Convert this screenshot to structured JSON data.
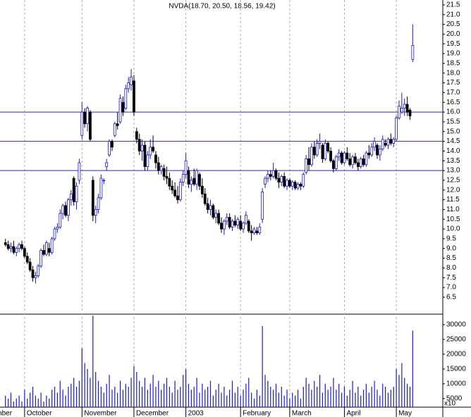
{
  "chart_data": {
    "type": "candlestick",
    "title": "NVDA(18.70, 20.50, 18.56, 19.42)",
    "up_color": "#1a1acc",
    "down_color": "#000000",
    "volume_color": "#1a1acc",
    "level_color": "#2a2aa8",
    "levels": [
      16.0,
      14.5,
      13.0
    ],
    "xlim": [
      -2,
      160
    ],
    "xticks": [
      {
        "value": -11,
        "label": "September"
      },
      {
        "value": 7,
        "label": "October"
      },
      {
        "value": 28,
        "label": "November"
      },
      {
        "value": 47,
        "label": "December"
      },
      {
        "value": 66,
        "label": "2003"
      },
      {
        "value": 86,
        "label": "February"
      },
      {
        "value": 104,
        "label": "March"
      },
      {
        "value": 124,
        "label": "April"
      },
      {
        "value": 143,
        "label": "May"
      }
    ],
    "ylim": [
      5.63,
      21.75
    ],
    "yticks": [
      6.5,
      {
        "value": 7,
        "label": "7.0"
      },
      7.5,
      {
        "value": 8,
        "label": "8.0"
      },
      8.5,
      {
        "value": 9,
        "label": "9.0"
      },
      9.5,
      {
        "value": 10,
        "label": "10.0"
      },
      10.5,
      {
        "value": 11,
        "label": "11.0"
      },
      11.5,
      {
        "value": 12,
        "label": "12.0"
      },
      12.5,
      {
        "value": 13,
        "label": "13.0"
      },
      13.5,
      {
        "value": 14,
        "label": "14.0"
      },
      14.5,
      {
        "value": 15,
        "label": "15.0"
      },
      15.5,
      {
        "value": 16,
        "label": "16.0"
      },
      16.5,
      {
        "value": 17,
        "label": "17.0"
      },
      17.5,
      {
        "value": 18,
        "label": "18.0"
      },
      18.5,
      {
        "value": 19,
        "label": "19.0"
      },
      19.5,
      {
        "value": 20,
        "label": "20.0"
      },
      20.5,
      {
        "value": 21,
        "label": "21.0"
      },
      21.5
    ],
    "volume_unit": "x10",
    "y2lim": [
      2100,
      32100
    ],
    "y2ticks": [
      5000,
      10000,
      15000,
      20000,
      25000,
      30000
    ],
    "ohlc": [
      [
        9.3,
        9.5,
        9.1,
        9.2
      ],
      [
        9.2,
        9.4,
        8.9,
        9.0
      ],
      [
        9.0,
        9.3,
        8.8,
        9.1
      ],
      [
        9.1,
        9.4,
        8.7,
        8.8
      ],
      [
        8.8,
        9.1,
        8.6,
        9.0
      ],
      [
        9.0,
        9.3,
        8.8,
        9.2
      ],
      [
        9.2,
        9.4,
        8.9,
        9.0
      ],
      [
        9.0,
        9.1,
        8.5,
        8.6
      ],
      [
        8.6,
        8.8,
        8.2,
        8.3
      ],
      [
        8.3,
        8.5,
        7.8,
        7.9
      ],
      [
        7.9,
        8.1,
        7.3,
        7.5
      ],
      [
        7.5,
        7.8,
        7.2,
        7.6
      ],
      [
        7.6,
        8.2,
        7.5,
        8.1
      ],
      [
        8.1,
        9.0,
        8.0,
        8.9
      ],
      [
        8.9,
        9.2,
        8.6,
        8.7
      ],
      [
        8.7,
        9.4,
        8.6,
        9.3
      ],
      [
        9.0,
        9.3,
        8.6,
        8.8
      ],
      [
        8.8,
        9.6,
        8.7,
        9.5
      ],
      [
        9.5,
        10.1,
        9.4,
        10.0
      ],
      [
        10.0,
        10.3,
        9.8,
        10.1
      ],
      [
        10.1,
        11.0,
        10.0,
        10.8
      ],
      [
        10.8,
        11.3,
        10.5,
        11.2
      ],
      [
        11.2,
        11.4,
        10.6,
        10.7
      ],
      [
        10.7,
        11.6,
        10.4,
        11.5
      ],
      [
        11.5,
        12.0,
        11.2,
        11.8
      ],
      [
        12.6,
        12.7,
        11.2,
        11.4
      ],
      [
        11.4,
        12.4,
        11.0,
        12.2
      ],
      [
        12.5,
        13.6,
        12.3,
        13.4
      ],
      [
        14.8,
        16.5,
        14.6,
        16.0
      ],
      [
        16.0,
        16.2,
        15.2,
        15.4
      ],
      [
        15.4,
        16.3,
        15.0,
        16.2
      ],
      [
        16.0,
        16.1,
        14.5,
        14.6
      ],
      [
        12.5,
        12.7,
        10.4,
        10.7
      ],
      [
        10.7,
        11.2,
        10.3,
        11.0
      ],
      [
        11.0,
        11.8,
        10.8,
        11.6
      ],
      [
        11.6,
        12.8,
        11.5,
        12.6
      ],
      [
        12.5,
        12.6,
        12.3,
        12.5
      ],
      [
        13.2,
        13.6,
        13.0,
        13.4
      ],
      [
        13.8,
        14.6,
        13.7,
        14.5
      ],
      [
        14.5,
        14.6,
        14.0,
        14.2
      ],
      [
        14.8,
        15.5,
        14.7,
        15.4
      ],
      [
        15.4,
        16.0,
        15.1,
        15.3
      ],
      [
        15.5,
        16.9,
        15.4,
        16.7
      ],
      [
        16.5,
        16.8,
        15.8,
        16.0
      ],
      [
        16.2,
        17.4,
        16.1,
        17.2
      ],
      [
        17.2,
        17.8,
        17.0,
        17.5
      ],
      [
        17.4,
        18.2,
        17.1,
        17.8
      ],
      [
        17.6,
        17.9,
        15.8,
        16.0
      ],
      [
        15.0,
        15.2,
        14.4,
        14.6
      ],
      [
        14.6,
        14.9,
        13.8,
        14.0
      ],
      [
        14.0,
        14.6,
        13.5,
        14.3
      ],
      [
        14.3,
        14.5,
        13.0,
        13.2
      ],
      [
        13.2,
        14.0,
        13.0,
        13.8
      ],
      [
        13.8,
        14.6,
        13.6,
        14.2
      ],
      [
        14.2,
        14.8,
        13.9,
        14.0
      ],
      [
        13.8,
        14.0,
        13.1,
        13.4
      ],
      [
        13.4,
        13.7,
        12.8,
        13.0
      ],
      [
        13.0,
        13.3,
        12.8,
        13.2
      ],
      [
        13.1,
        13.3,
        12.5,
        12.7
      ],
      [
        12.7,
        13.2,
        12.3,
        12.6
      ],
      [
        12.6,
        12.9,
        12.0,
        12.2
      ],
      [
        12.2,
        12.5,
        11.8,
        12.0
      ],
      [
        12.0,
        12.4,
        11.6,
        11.7
      ],
      [
        11.7,
        12.2,
        11.3,
        11.5
      ],
      [
        11.5,
        12.6,
        11.4,
        12.4
      ],
      [
        12.4,
        13.0,
        12.2,
        12.8
      ],
      [
        12.8,
        13.9,
        12.6,
        13.5
      ],
      [
        13.0,
        13.2,
        12.1,
        12.3
      ],
      [
        12.3,
        12.7,
        11.9,
        12.5
      ],
      [
        12.6,
        13.1,
        12.2,
        12.3
      ],
      [
        12.3,
        13.1,
        12.0,
        13.0
      ],
      [
        12.8,
        12.9,
        12.0,
        12.2
      ],
      [
        12.2,
        12.6,
        11.6,
        11.8
      ],
      [
        11.8,
        12.1,
        11.2,
        11.3
      ],
      [
        11.3,
        11.6,
        10.8,
        11.0
      ],
      [
        11.0,
        11.5,
        10.7,
        11.2
      ],
      [
        11.2,
        11.3,
        10.5,
        10.6
      ],
      [
        10.6,
        11.0,
        10.3,
        10.8
      ],
      [
        10.8,
        11.0,
        10.2,
        10.3
      ],
      [
        10.3,
        10.6,
        9.8,
        10.0
      ],
      [
        10.0,
        10.5,
        9.7,
        10.4
      ],
      [
        10.4,
        10.8,
        10.2,
        10.6
      ],
      [
        10.6,
        10.8,
        10.0,
        10.1
      ],
      [
        10.1,
        10.5,
        9.9,
        10.4
      ],
      [
        10.4,
        10.7,
        10.1,
        10.2
      ],
      [
        10.2,
        10.6,
        10.0,
        10.5
      ],
      [
        10.4,
        10.7,
        9.9,
        10.0
      ],
      [
        10.0,
        10.4,
        9.8,
        10.3
      ],
      [
        10.3,
        10.9,
        10.2,
        10.7
      ],
      [
        10.4,
        10.5,
        9.8,
        9.9
      ],
      [
        9.9,
        10.2,
        9.4,
        9.8
      ],
      [
        9.8,
        10.1,
        9.7,
        10.0
      ],
      [
        9.9,
        10.1,
        9.7,
        9.8
      ],
      [
        9.8,
        10.3,
        9.7,
        10.1
      ],
      [
        10.5,
        12.1,
        10.3,
        11.9
      ],
      [
        12.3,
        12.7,
        12.1,
        12.6
      ],
      [
        12.6,
        13.0,
        12.4,
        12.8
      ],
      [
        12.8,
        13.0,
        12.5,
        12.7
      ],
      [
        12.7,
        13.4,
        12.6,
        13.0
      ],
      [
        13.0,
        13.1,
        12.5,
        12.6
      ],
      [
        12.6,
        12.9,
        12.1,
        12.4
      ],
      [
        12.4,
        12.8,
        12.2,
        12.7
      ],
      [
        12.7,
        12.9,
        12.1,
        12.2
      ],
      [
        12.2,
        12.6,
        12.0,
        12.5
      ],
      [
        12.5,
        12.6,
        12.1,
        12.2
      ],
      [
        12.2,
        12.5,
        12.0,
        12.4
      ],
      [
        12.4,
        12.5,
        12.0,
        12.1
      ],
      [
        12.1,
        12.4,
        12.0,
        12.3
      ],
      [
        12.3,
        12.4,
        12.0,
        12.2
      ],
      [
        12.2,
        12.9,
        12.1,
        12.8
      ],
      [
        12.9,
        13.8,
        12.8,
        13.6
      ],
      [
        13.6,
        14.2,
        13.0,
        13.3
      ],
      [
        13.3,
        14.4,
        13.2,
        14.2
      ],
      [
        14.2,
        14.5,
        13.6,
        13.8
      ],
      [
        13.8,
        14.6,
        13.7,
        14.4
      ],
      [
        14.4,
        14.9,
        14.1,
        14.5
      ],
      [
        14.3,
        14.4,
        13.4,
        13.6
      ],
      [
        13.6,
        14.6,
        13.5,
        14.4
      ],
      [
        14.4,
        14.5,
        13.9,
        14.0
      ],
      [
        14.0,
        14.2,
        13.4,
        13.5
      ],
      [
        13.5,
        13.6,
        12.9,
        13.1
      ],
      [
        13.1,
        13.8,
        13.0,
        13.7
      ],
      [
        13.7,
        14.1,
        13.5,
        13.9
      ],
      [
        13.9,
        14.0,
        13.3,
        13.4
      ],
      [
        13.4,
        14.0,
        13.3,
        13.9
      ],
      [
        13.9,
        14.2,
        13.5,
        13.6
      ],
      [
        13.6,
        13.9,
        13.2,
        13.3
      ],
      [
        13.3,
        13.8,
        13.1,
        13.7
      ],
      [
        13.7,
        13.9,
        13.3,
        13.4
      ],
      [
        13.4,
        13.6,
        13.0,
        13.2
      ],
      [
        13.2,
        13.7,
        13.1,
        13.6
      ],
      [
        13.6,
        13.8,
        13.2,
        13.3
      ],
      [
        13.3,
        14.0,
        13.2,
        13.9
      ],
      [
        13.9,
        14.3,
        13.6,
        13.8
      ],
      [
        13.8,
        14.4,
        13.7,
        14.2
      ],
      [
        14.2,
        14.7,
        14.0,
        14.5
      ],
      [
        14.3,
        14.4,
        13.6,
        13.8
      ],
      [
        13.8,
        14.3,
        13.5,
        14.1
      ],
      [
        14.1,
        14.8,
        14.0,
        14.6
      ],
      [
        14.4,
        14.6,
        14.2,
        14.3
      ],
      [
        14.3,
        14.7,
        14.1,
        14.6
      ],
      [
        14.6,
        14.9,
        14.3,
        14.4
      ],
      [
        14.4,
        14.7,
        14.2,
        14.6
      ],
      [
        14.6,
        15.8,
        14.5,
        15.7
      ],
      [
        15.7,
        16.6,
        15.6,
        16.3
      ],
      [
        16.0,
        17.0,
        15.9,
        16.2
      ],
      [
        16.2,
        16.7,
        15.8,
        16.4
      ],
      [
        16.4,
        16.8,
        15.8,
        16.0
      ],
      [
        16.1,
        16.2,
        15.6,
        15.8
      ],
      [
        18.7,
        20.5,
        18.56,
        19.42
      ]
    ],
    "volume": [
      6000,
      5000,
      7000,
      4000,
      5000,
      6000,
      4000,
      8000,
      5000,
      7000,
      9000,
      6000,
      5000,
      7000,
      4000,
      6000,
      5000,
      8000,
      9000,
      7000,
      11000,
      8000,
      6000,
      9000,
      10000,
      12000,
      9000,
      11000,
      22000,
      17000,
      15000,
      12000,
      33000,
      14000,
      11000,
      9000,
      7000,
      10000,
      13000,
      8000,
      9000,
      7000,
      11000,
      8000,
      10000,
      9000,
      12000,
      16000,
      14000,
      11000,
      9000,
      12000,
      8000,
      10000,
      13000,
      9000,
      11000,
      8000,
      10000,
      12000,
      9000,
      7000,
      11000,
      8000,
      9000,
      13000,
      15000,
      10000,
      8000,
      9000,
      12000,
      7000,
      10000,
      8000,
      9000,
      11000,
      6000,
      8000,
      10000,
      7000,
      9000,
      6000,
      8000,
      11000,
      7000,
      9000,
      6000,
      8000,
      10000,
      12000,
      7000,
      5000,
      8000,
      6000,
      29500,
      13000,
      11000,
      9000,
      8000,
      10000,
      7000,
      9000,
      6000,
      8000,
      5000,
      7000,
      6000,
      8000,
      5000,
      9000,
      12000,
      10000,
      8000,
      11000,
      9000,
      13000,
      7000,
      10000,
      8000,
      9000,
      12000,
      8000,
      10000,
      7000,
      9000,
      6000,
      8000,
      11000,
      7000,
      9000,
      6000,
      8000,
      10000,
      7000,
      9000,
      11000,
      8000,
      6000,
      10000,
      9000,
      7000,
      8000,
      9000,
      15000,
      13000,
      17000,
      12000,
      10000,
      9000,
      28000
    ]
  }
}
